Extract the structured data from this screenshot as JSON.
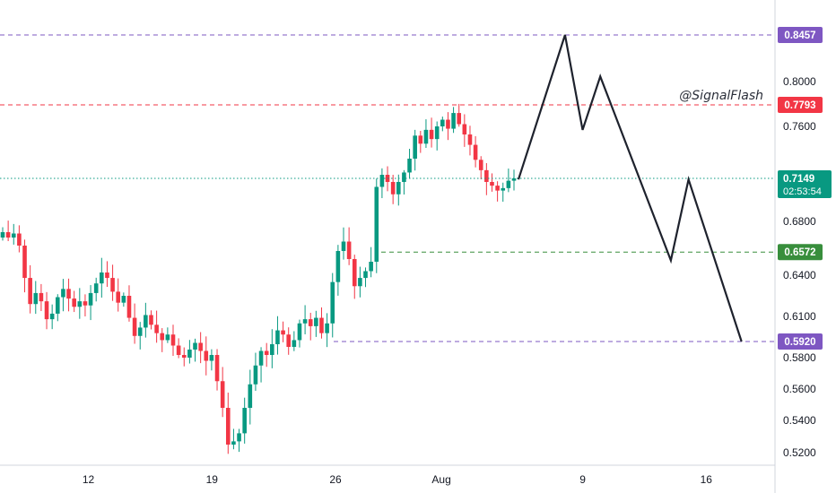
{
  "watermark": "@SignalFlash",
  "chart_data": {
    "type": "candlestick",
    "title": "",
    "xlabel": "",
    "ylabel": "",
    "x_ticks": [
      "12",
      "19",
      "26",
      "Aug",
      "9",
      "16"
    ],
    "y_ticks": [
      "0.8000",
      "0.7600",
      "0.6800",
      "0.6400",
      "0.6100",
      "0.5800",
      "0.5600",
      "0.5400",
      "0.5200"
    ],
    "ylim": [
      0.51,
      0.862
    ],
    "levels": [
      {
        "label": "0.8457",
        "value": 0.8457,
        "color": "#7e57c2"
      },
      {
        "label": "0.7793",
        "value": 0.7793,
        "color": "#f23645"
      },
      {
        "label": "0.6572",
        "value": 0.6572,
        "color": "#388e3c"
      },
      {
        "label": "0.5920",
        "value": 0.592,
        "color": "#7e57c2"
      }
    ],
    "last_price": {
      "label": "0.7149",
      "value": 0.7149,
      "countdown": "02:53:54",
      "color": "#089981"
    },
    "candle_closes": [
      0.672,
      0.668,
      0.671,
      0.662,
      0.638,
      0.619,
      0.627,
      0.621,
      0.608,
      0.612,
      0.624,
      0.63,
      0.623,
      0.617,
      0.621,
      0.618,
      0.627,
      0.634,
      0.642,
      0.638,
      0.628,
      0.62,
      0.625,
      0.609,
      0.596,
      0.602,
      0.611,
      0.604,
      0.598,
      0.593,
      0.597,
      0.589,
      0.582,
      0.58,
      0.586,
      0.591,
      0.585,
      0.578,
      0.582,
      0.565,
      0.548,
      0.525,
      0.527,
      0.532,
      0.548,
      0.563,
      0.575,
      0.585,
      0.582,
      0.59,
      0.6,
      0.597,
      0.588,
      0.593,
      0.605,
      0.608,
      0.603,
      0.609,
      0.598,
      0.605,
      0.635,
      0.658,
      0.665,
      0.652,
      0.632,
      0.638,
      0.643,
      0.65,
      0.708,
      0.718,
      0.712,
      0.702,
      0.712,
      0.72,
      0.732,
      0.752,
      0.745,
      0.757,
      0.749,
      0.76,
      0.766,
      0.758,
      0.772,
      0.762,
      0.753,
      0.744,
      0.731,
      0.722,
      0.712,
      0.709,
      0.705,
      0.707,
      0.713,
      0.7149
    ],
    "projection_path": [
      {
        "date": "Aug 5",
        "value": 0.714
      },
      {
        "date": "Aug 7",
        "value": 0.8457
      },
      {
        "date": "Aug 8",
        "value": 0.757
      },
      {
        "date": "Aug 9",
        "value": 0.805
      },
      {
        "date": "Aug 13",
        "value": 0.651
      },
      {
        "date": "Aug 14",
        "value": 0.714
      },
      {
        "date": "Aug 17",
        "value": 0.592
      }
    ]
  }
}
